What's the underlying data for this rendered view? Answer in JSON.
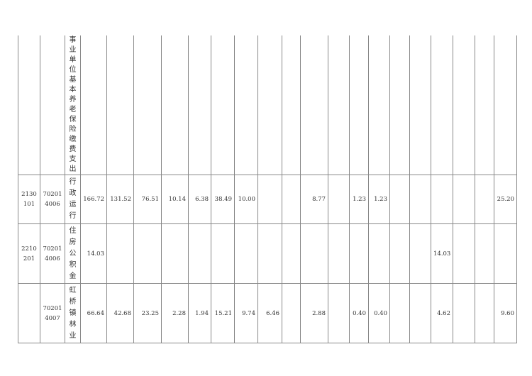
{
  "table": {
    "rows": [
      {
        "code1": "",
        "code2": "",
        "name": "事业单位基本养老保险缴费支出",
        "values": [
          "",
          "",
          "",
          "",
          "",
          "",
          "",
          "",
          "",
          "",
          "",
          "",
          "",
          "",
          "",
          "",
          "",
          "",
          ""
        ]
      },
      {
        "code1": "2130\n101",
        "code2": "70201\n4006",
        "name": "行政运行",
        "values": [
          "166.72",
          "131.52",
          "76.51",
          "10.14",
          "6.38",
          "38.49",
          "10.00",
          "",
          "",
          "8.77",
          "",
          "1.23",
          "1.23",
          "",
          "",
          "",
          "",
          "",
          "25.20"
        ]
      },
      {
        "code1": "2210\n201",
        "code2": "70201\n4006",
        "name": "住房公积金",
        "values": [
          "14.03",
          "",
          "",
          "",
          "",
          "",
          "",
          "",
          "",
          "",
          "",
          "",
          "",
          "",
          "",
          "14.03",
          "",
          "",
          ""
        ]
      },
      {
        "code1": "",
        "code2": "70201\n4007",
        "name": "虹桥镇林业",
        "values": [
          "66.64",
          "42.68",
          "23.25",
          "2.28",
          "1.94",
          "15.21",
          "9.74",
          "6.46",
          "",
          "2.88",
          "",
          "0.40",
          "0.40",
          "",
          "",
          "4.62",
          "",
          "",
          "9.60"
        ]
      }
    ]
  }
}
